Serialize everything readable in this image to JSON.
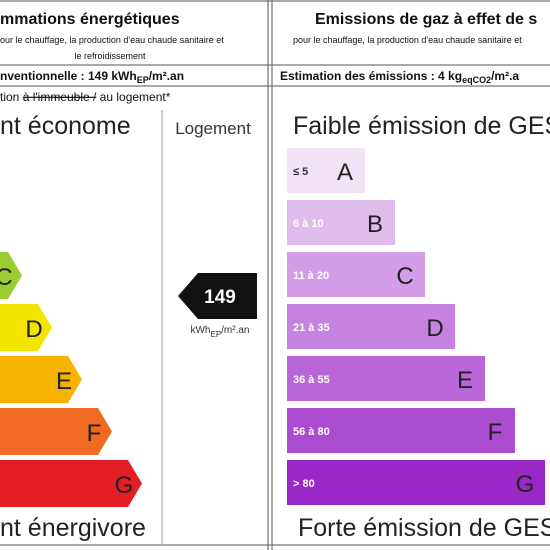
{
  "left": {
    "title": "mmations énergétiques",
    "subtitle_line1": "our le chauffage, la production d'eau chaude sanitaire et",
    "subtitle_line2": "le refroidissement",
    "estimate_prefix": "nventionnelle : 149 kWh",
    "estimate_sub": "EP",
    "estimate_suffix": "/m².an",
    "scope_before": "tion ",
    "scope_struck": "à l'immeuble /",
    "scope_after": " au logement*",
    "top_label": "nt économe",
    "column_label": "Logement",
    "bottom_label": "nt énergivore",
    "bands": [
      "C",
      "D",
      "E",
      "F",
      "G"
    ],
    "value": 149,
    "unit_prefix": "kWh",
    "unit_sub": "EP",
    "unit_suffix": "/m².an"
  },
  "right": {
    "title": "Emissions de gaz à effet de s",
    "subtitle_line1": "pour le chauffage, la production d'eau chaude sanitaire et",
    "estimate_prefix": "Estimation des émissions : 4 kg",
    "estimate_sub": "eqCO2",
    "estimate_suffix": "/m².a",
    "top_label": "Faible émission de GES",
    "bottom_label": "Forte émission de GES",
    "bands": [
      {
        "range": "≤ 5",
        "letter": "A"
      },
      {
        "range": "6 à 10",
        "letter": "B"
      },
      {
        "range": "11 à 20",
        "letter": "C"
      },
      {
        "range": "21 à 35",
        "letter": "D"
      },
      {
        "range": "36 à 55",
        "letter": "E"
      },
      {
        "range": "56 à 80",
        "letter": "F"
      },
      {
        "range": "> 80",
        "letter": "G"
      }
    ]
  }
}
